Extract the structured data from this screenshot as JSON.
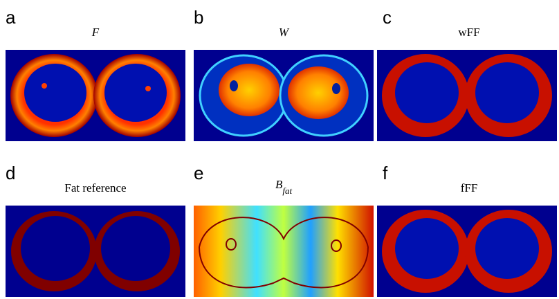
{
  "panels": [
    {
      "letter": "a",
      "title": "F"
    },
    {
      "letter": "b",
      "title": "W"
    },
    {
      "letter": "c",
      "title": "wFF"
    },
    {
      "letter": "d",
      "title": "Fat reference"
    },
    {
      "letter": "e",
      "title": "B",
      "subscript": "fat"
    },
    {
      "letter": "f",
      "title": "fFF"
    }
  ]
}
